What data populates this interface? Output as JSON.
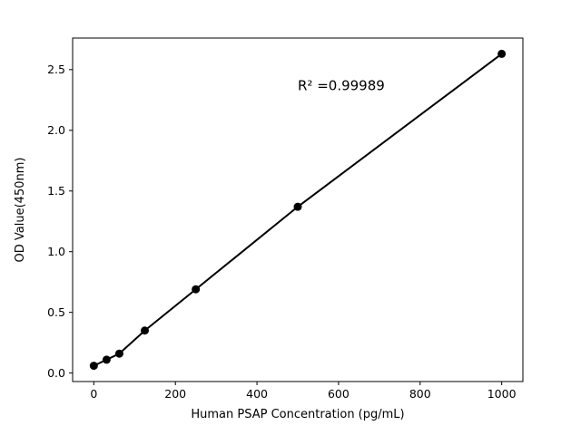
{
  "chart_data": {
    "type": "scatter",
    "title": "",
    "xlabel": "Human PSAP Concentration (pg/mL)",
    "ylabel": "OD Value(450nm)",
    "x": [
      0,
      31.25,
      62.5,
      125,
      250,
      500,
      1000
    ],
    "y": [
      0.06,
      0.11,
      0.16,
      0.35,
      0.69,
      1.37,
      2.63
    ],
    "xlim": [
      -52,
      1052
    ],
    "ylim": [
      -0.07,
      2.76
    ],
    "xticks": [
      0,
      200,
      400,
      600,
      800,
      1000
    ],
    "yticks": [
      0.0,
      0.5,
      1.0,
      1.5,
      2.0,
      2.5
    ],
    "grid": false,
    "legend": null,
    "line_color": "#000000",
    "marker_color": "#000000",
    "background_color": "#ffffff",
    "annotation": {
      "text": "R² =0.99989",
      "x": 500,
      "y": 2.33
    }
  }
}
